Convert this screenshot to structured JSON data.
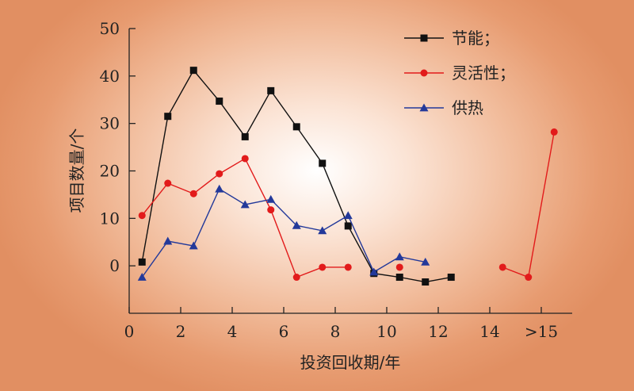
{
  "chart_data": {
    "type": "line",
    "title": "",
    "xlabel": "投资回收期/年",
    "ylabel": "项目数量/个",
    "xlim": [
      0,
      17.2
    ],
    "ylim": [
      -10,
      50
    ],
    "x_ticks": [
      {
        "value": 0,
        "label": "0"
      },
      {
        "value": 2,
        "label": "2"
      },
      {
        "value": 4,
        "label": "4"
      },
      {
        "value": 6,
        "label": "6"
      },
      {
        "value": 8,
        "label": "8"
      },
      {
        "value": 10,
        "label": "10"
      },
      {
        "value": 12,
        "label": "12"
      },
      {
        "value": 14,
        "label": "14"
      },
      {
        "value": 16,
        "label": ">15"
      }
    ],
    "y_ticks": [
      {
        "value": 0,
        "label": "0"
      },
      {
        "value": 10,
        "label": "10"
      },
      {
        "value": 20,
        "label": "20"
      },
      {
        "value": 30,
        "label": "30"
      },
      {
        "value": 40,
        "label": "40"
      },
      {
        "value": 50,
        "label": "50"
      }
    ],
    "grid": false,
    "legend_position": "top-right",
    "series": [
      {
        "name": "节能；",
        "color": "#111111",
        "marker": "square",
        "segments": [
          [
            [
              0.5,
              0.8
            ],
            [
              1.5,
              31.5
            ],
            [
              2.5,
              41.2
            ],
            [
              3.5,
              34.7
            ],
            [
              4.5,
              27.2
            ],
            [
              5.5,
              36.9
            ],
            [
              6.5,
              29.3
            ],
            [
              7.5,
              21.6
            ],
            [
              8.5,
              8.4
            ],
            [
              9.5,
              -1.6
            ],
            [
              10.5,
              -2.4
            ],
            [
              11.5,
              -3.4
            ],
            [
              12.5,
              -2.4
            ]
          ]
        ]
      },
      {
        "name": "灵活性；",
        "color": "#e21b1b",
        "marker": "circle",
        "segments": [
          [
            [
              0.5,
              10.6
            ],
            [
              1.5,
              17.4
            ],
            [
              2.5,
              15.2
            ],
            [
              3.5,
              19.4
            ],
            [
              4.5,
              22.6
            ],
            [
              5.5,
              11.8
            ],
            [
              6.5,
              -2.4
            ],
            [
              7.5,
              -0.3
            ],
            [
              8.5,
              -0.3
            ]
          ],
          [
            [
              10.5,
              -0.3
            ]
          ],
          [
            [
              14.5,
              -0.3
            ],
            [
              15.5,
              -2.4
            ],
            [
              16.5,
              28.2
            ]
          ]
        ]
      },
      {
        "name": "供热",
        "color": "#23399a",
        "marker": "triangle",
        "segments": [
          [
            [
              0.5,
              -2.4
            ],
            [
              1.5,
              5.2
            ],
            [
              2.5,
              4.2
            ],
            [
              3.5,
              16.2
            ],
            [
              4.5,
              12.9
            ],
            [
              5.5,
              14.0
            ],
            [
              6.5,
              8.5
            ],
            [
              7.5,
              7.4
            ],
            [
              8.5,
              10.6
            ],
            [
              9.5,
              -1.3
            ],
            [
              10.5,
              1.9
            ],
            [
              11.5,
              0.8
            ]
          ]
        ]
      }
    ]
  }
}
